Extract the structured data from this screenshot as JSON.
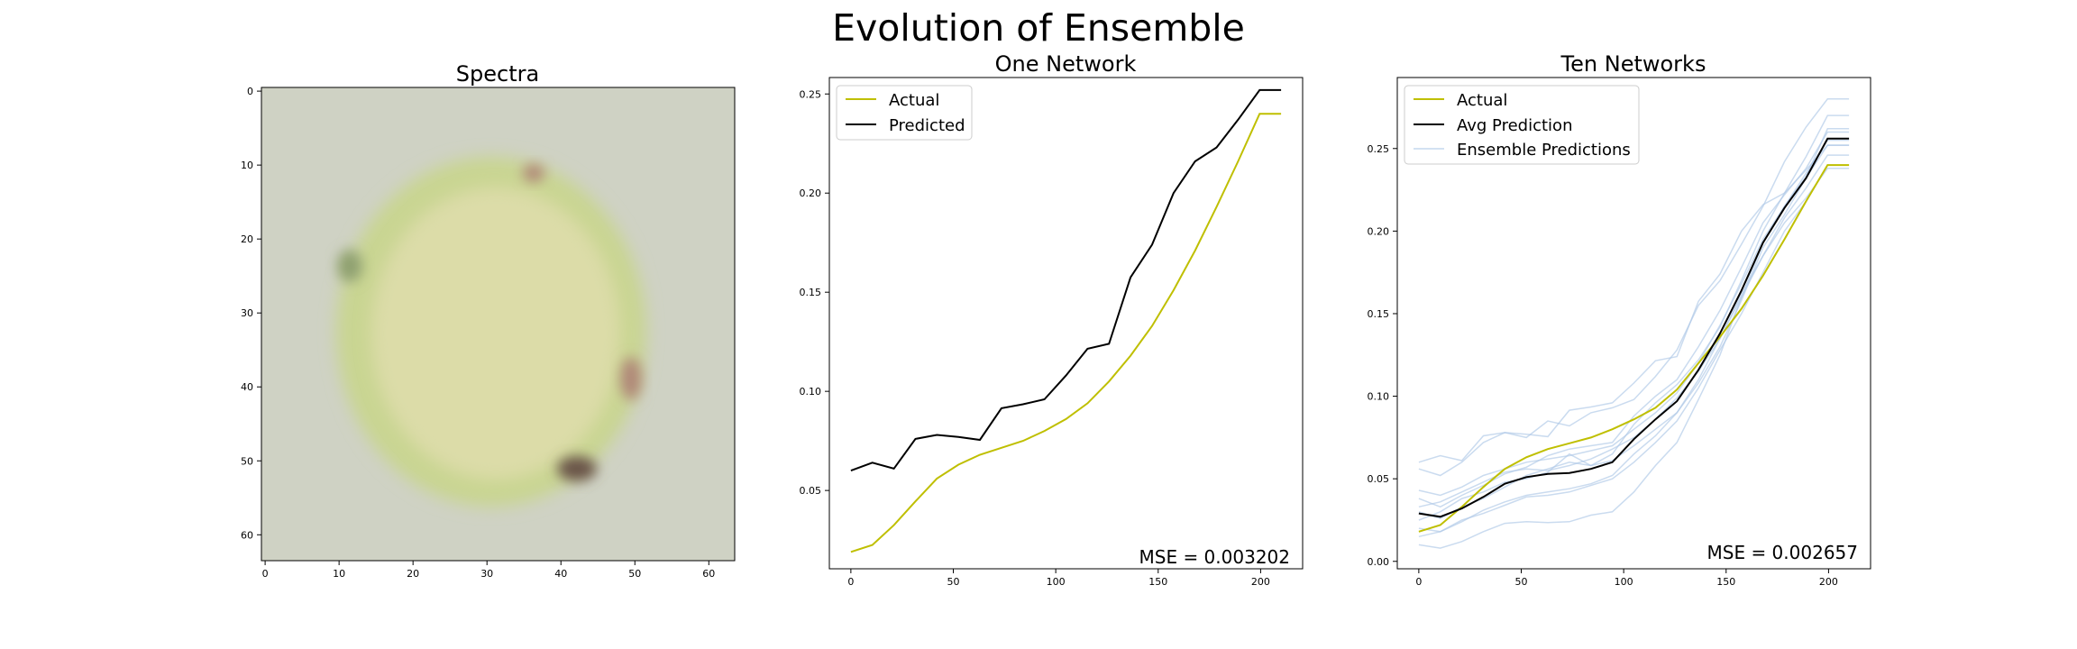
{
  "figure": {
    "title": "Evolution of Ensemble"
  },
  "chart_data": [
    {
      "type": "heatmap",
      "title": "Spectra",
      "description": "64x64 RGB image of a roughly circular cell with a pale yellow-green interior and darker rim",
      "xlim": [
        -0.5,
        63.5
      ],
      "ylim": [
        63.5,
        -0.5
      ],
      "xticks": [
        0,
        10,
        20,
        30,
        40,
        50,
        60
      ],
      "yticks": [
        0,
        10,
        20,
        30,
        40,
        50,
        60
      ],
      "colors": {
        "background": "#cfd2c4",
        "cell": "#dcdca8",
        "rim": "#c9d592",
        "spot_red": "#b08878",
        "spot_dark": "#6b5548",
        "spot_green": "#8fa070"
      }
    },
    {
      "type": "line",
      "title": "One Network",
      "x": [
        0,
        10.5,
        21,
        31.5,
        42,
        52.5,
        63,
        73.5,
        84,
        94.5,
        105,
        115.5,
        126,
        136.5,
        147,
        157.5,
        168,
        178.5,
        189,
        199.5,
        210
      ],
      "xlim": [
        -10.5,
        220.5
      ],
      "ylim": [
        0.0105,
        0.2583
      ],
      "xticks": [
        0,
        50,
        100,
        150,
        200
      ],
      "yticks": [
        0.05,
        0.1,
        0.15,
        0.2,
        0.25
      ],
      "ytick_labels": [
        "0.05",
        "0.10",
        "0.15",
        "0.20",
        "0.25"
      ],
      "series": [
        {
          "name": "Actual",
          "color": "#bfbf00",
          "values": [
            0.019,
            0.0225,
            0.0325,
            0.0445,
            0.056,
            0.063,
            0.068,
            0.0715,
            0.075,
            0.08,
            0.086,
            0.094,
            0.105,
            0.118,
            0.133,
            0.151,
            0.171,
            0.193,
            0.216,
            0.24,
            0.24
          ]
        },
        {
          "name": "Predicted",
          "color": "#000000",
          "values": [
            0.06,
            0.064,
            0.061,
            0.076,
            0.078,
            0.077,
            0.0755,
            0.0915,
            0.0935,
            0.096,
            0.108,
            0.1215,
            0.124,
            0.1575,
            0.174,
            0.2,
            0.216,
            0.223,
            0.237,
            0.252,
            0.252
          ]
        }
      ],
      "legend": "top-left",
      "annotation": "MSE = 0.003202"
    },
    {
      "type": "line",
      "title": "Ten Networks",
      "x": [
        0,
        10.5,
        21,
        31.5,
        42,
        52.5,
        63,
        73.5,
        84,
        94.5,
        105,
        115.5,
        126,
        136.5,
        147,
        157.5,
        168,
        178.5,
        189,
        199.5,
        210
      ],
      "xlim": [
        -10.5,
        220.5
      ],
      "ylim": [
        -0.0045,
        0.293
      ],
      "xticks": [
        0,
        50,
        100,
        150,
        200
      ],
      "yticks": [
        0.0,
        0.05,
        0.1,
        0.15,
        0.2,
        0.25
      ],
      "ytick_labels": [
        "0.00",
        "0.05",
        "0.10",
        "0.15",
        "0.20",
        "0.25"
      ],
      "series": [
        {
          "name": "Actual",
          "color": "#bfbf00",
          "values": [
            0.018,
            0.022,
            0.033,
            0.045,
            0.056,
            0.063,
            0.068,
            0.0715,
            0.075,
            0.08,
            0.086,
            0.093,
            0.104,
            0.12,
            0.136,
            0.153,
            0.173,
            0.195,
            0.218,
            0.24,
            0.24
          ]
        },
        {
          "name": "Avg Prediction",
          "color": "#000000",
          "values": [
            0.029,
            0.027,
            0.032,
            0.039,
            0.047,
            0.051,
            0.053,
            0.0535,
            0.056,
            0.06,
            0.074,
            0.086,
            0.097,
            0.116,
            0.138,
            0.164,
            0.193,
            0.214,
            0.232,
            0.256,
            0.256
          ]
        },
        {
          "name": "Ensemble Predictions",
          "color": "#adc8e6",
          "members": [
            [
              0.06,
              0.064,
              0.061,
              0.076,
              0.078,
              0.077,
              0.0755,
              0.0915,
              0.0935,
              0.096,
              0.108,
              0.1215,
              0.124,
              0.1575,
              0.174,
              0.2,
              0.216,
              0.223,
              0.237,
              0.252,
              0.252
            ],
            [
              0.01,
              0.008,
              0.012,
              0.018,
              0.023,
              0.024,
              0.0235,
              0.024,
              0.028,
              0.03,
              0.042,
              0.058,
              0.072,
              0.098,
              0.125,
              0.16,
              0.193,
              0.215,
              0.233,
              0.262,
              0.262
            ],
            [
              0.056,
              0.052,
              0.06,
              0.072,
              0.078,
              0.075,
              0.085,
              0.082,
              0.09,
              0.093,
              0.098,
              0.112,
              0.128,
              0.155,
              0.17,
              0.192,
              0.215,
              0.242,
              0.263,
              0.28,
              0.28
            ],
            [
              0.02,
              0.018,
              0.024,
              0.031,
              0.036,
              0.04,
              0.042,
              0.044,
              0.047,
              0.052,
              0.065,
              0.076,
              0.09,
              0.11,
              0.135,
              0.162,
              0.185,
              0.208,
              0.226,
              0.246,
              0.246
            ],
            [
              0.038,
              0.033,
              0.04,
              0.046,
              0.053,
              0.057,
              0.064,
              0.068,
              0.07,
              0.072,
              0.088,
              0.1,
              0.11,
              0.13,
              0.152,
              0.178,
              0.205,
              0.222,
              0.238,
              0.26,
              0.26
            ],
            [
              0.03,
              0.026,
              0.033,
              0.038,
              0.045,
              0.052,
              0.056,
              0.06,
              0.058,
              0.061,
              0.07,
              0.08,
              0.09,
              0.108,
              0.13,
              0.158,
              0.19,
              0.21,
              0.232,
              0.252,
              0.252
            ],
            [
              0.025,
              0.03,
              0.038,
              0.042,
              0.048,
              0.05,
              0.054,
              0.065,
              0.058,
              0.065,
              0.083,
              0.096,
              0.107,
              0.122,
              0.142,
              0.17,
              0.2,
              0.223,
              0.245,
              0.27,
              0.27
            ],
            [
              0.033,
              0.036,
              0.042,
              0.048,
              0.054,
              0.056,
              0.055,
              0.058,
              0.062,
              0.068,
              0.075,
              0.086,
              0.099,
              0.115,
              0.135,
              0.16,
              0.185,
              0.205,
              0.22,
              0.238,
              0.238
            ],
            [
              0.015,
              0.018,
              0.025,
              0.029,
              0.034,
              0.039,
              0.04,
              0.042,
              0.046,
              0.05,
              0.06,
              0.072,
              0.085,
              0.105,
              0.128,
              0.15,
              0.175,
              0.2,
              0.218,
              0.24,
              0.24
            ],
            [
              0.043,
              0.04,
              0.045,
              0.052,
              0.056,
              0.06,
              0.062,
              0.064,
              0.067,
              0.07,
              0.08,
              0.09,
              0.102,
              0.12,
              0.143,
              0.168,
              0.195,
              0.215,
              0.235,
              0.255,
              0.255
            ]
          ]
        }
      ],
      "legend": "top-left",
      "annotation": "MSE = 0.002657"
    }
  ]
}
